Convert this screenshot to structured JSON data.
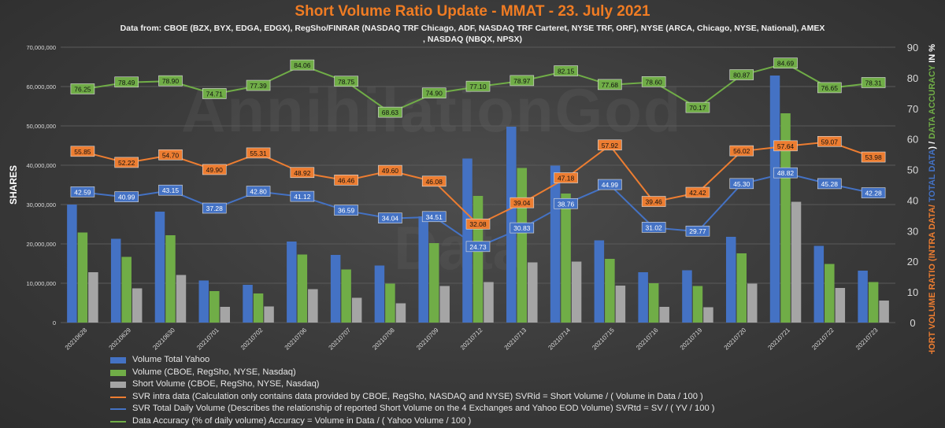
{
  "title": "Short Volume Ratio Update - MMAT - 23. July 2021",
  "subtitle": "Data from: CBOE (BZX, BYX, EDGA, EDGX), RegSho/FINRAR (NASDAQ TRF Chicago, ADF, NASDAQ TRF Carteret, NYSE TRF, ORF), NYSE (ARCA, Chicago, NYSE, National), AMEX , NASDAQ (NBQX, NPSX)",
  "watermark": "AnnihilationGod",
  "watermark2": "Data",
  "colors": {
    "volume_yahoo": "#4472c4",
    "volume_exchanges": "#70ad47",
    "short_volume": "#a5a5a5",
    "svr_intra": "#ed7d31",
    "svr_total": "#4472c4",
    "accuracy": "#70ad47",
    "title": "#f07c23"
  },
  "legend": [
    {
      "key": "volume_yahoo",
      "kind": "bar",
      "label": "Volume Total Yahoo"
    },
    {
      "key": "volume_exchanges",
      "kind": "bar",
      "label": "Volume (CBOE, RegSho, NYSE, Nasdaq)"
    },
    {
      "key": "short_volume",
      "kind": "bar",
      "label": "Short  Volume (CBOE, RegSho, NYSE, Nasdaq)"
    },
    {
      "key": "svr_intra",
      "kind": "line",
      "label": "SVR intra data (Calculation only contains data provided by CBOE, RegSho, NASDAQ and NYSE) SVRid = Short Volume / ( Volume in Data / 100 )"
    },
    {
      "key": "svr_total",
      "kind": "line",
      "label": "SVR Total Daily Volume (Describes the relationship of reported Short Volume on the 4 Exchanges and Yahoo EOD Volume) SVRtd = SV / ( YV / 100 )"
    },
    {
      "key": "accuracy",
      "kind": "line",
      "label": "Data Accuracy (% of daily volume) Accuracy = Volume in Data / ( Yahoo Volume / 100 )"
    }
  ],
  "chart_data": {
    "type": "bar",
    "categories": [
      "20210628",
      "20210629",
      "20210630",
      "20210701",
      "20210702",
      "20210706",
      "20210707",
      "20210708",
      "20210709",
      "20210712",
      "20210713",
      "20210714",
      "20210715",
      "20210716",
      "20210719",
      "20210720",
      "20210721",
      "20210722",
      "20210723"
    ],
    "ylabel": "SHARES",
    "ylim": [
      0,
      70000000
    ],
    "yticks": [
      "0",
      "10,000,000",
      "20,000,000",
      "30,000,000",
      "40,000,000",
      "50,000,000",
      "60,000,000",
      "70,000,000"
    ],
    "y2label_parts": [
      {
        "text": "SHORT VOLUME RATIO (INTRA DATA/ ",
        "key": "svr_intra"
      },
      {
        "text": "TOTAL DATA",
        "key": "svr_total"
      },
      {
        "text": ") / ",
        "key": "plain"
      },
      {
        "text": "DATA ACCURACY",
        "key": "accuracy"
      },
      {
        "text": " IN %",
        "key": "plain"
      }
    ],
    "y2lim": [
      0,
      90
    ],
    "y2ticks": [
      "0",
      "10",
      "20",
      "30",
      "40",
      "50",
      "60",
      "70",
      "80",
      "90"
    ],
    "grid": true,
    "legend_position": "bottom-left",
    "bar_series": [
      {
        "key": "volume_yahoo",
        "values": [
          30000000,
          21300000,
          28200000,
          10700000,
          9600000,
          20600000,
          17200000,
          14500000,
          27000000,
          41700000,
          49800000,
          39900000,
          20900000,
          12800000,
          13300000,
          21800000,
          62800000,
          19500000,
          13200000
        ]
      },
      {
        "key": "volume_exchanges",
        "values": [
          22900000,
          16700000,
          22200000,
          8000000,
          7400000,
          17300000,
          13500000,
          9900000,
          20200000,
          32200000,
          39300000,
          32800000,
          16200000,
          10000000,
          9300000,
          17600000,
          53200000,
          14900000,
          10300000
        ]
      },
      {
        "key": "short_volume",
        "values": [
          12800000,
          8700000,
          12100000,
          4000000,
          4100000,
          8500000,
          6300000,
          4900000,
          9300000,
          10300000,
          15300000,
          15500000,
          9400000,
          4000000,
          3900000,
          9900000,
          30700000,
          8800000,
          5600000
        ]
      }
    ],
    "line_series": [
      {
        "key": "accuracy",
        "values": [
          76.25,
          78.49,
          78.9,
          74.71,
          77.39,
          84.06,
          78.75,
          68.63,
          74.9,
          77.1,
          78.97,
          82.15,
          77.68,
          78.6,
          70.17,
          80.87,
          84.69,
          76.65,
          78.31
        ],
        "labels": [
          "76.25",
          "78.49",
          "78.90",
          "74.71",
          "77.39",
          "84.06",
          "78.75",
          "68.63",
          "74.90",
          "77.10",
          "78.97",
          "82.15",
          "77.68",
          "78.60",
          "70.17",
          "80.87",
          "84.69",
          "76.65",
          "78.31"
        ]
      },
      {
        "key": "svr_intra",
        "values": [
          55.85,
          52.22,
          54.7,
          49.9,
          55.31,
          48.92,
          46.46,
          49.6,
          46.08,
          32.08,
          39.04,
          47.18,
          57.92,
          39.46,
          42.42,
          56.02,
          57.64,
          59.07,
          53.98
        ],
        "labels": [
          "55.85",
          "52.22",
          "54.70",
          "49.90",
          "55.31",
          "48.92",
          "46.46",
          "49.60",
          "46.08",
          "32.08",
          "39.04",
          "47.18",
          "57.92",
          "39.46",
          "42.42",
          "56.02",
          "57.64",
          "59.07",
          "53.98"
        ]
      },
      {
        "key": "svr_total",
        "values": [
          42.59,
          40.99,
          43.15,
          37.28,
          42.8,
          41.12,
          36.59,
          34.04,
          34.51,
          24.73,
          30.83,
          38.76,
          44.99,
          31.02,
          29.77,
          45.3,
          48.82,
          45.28,
          42.28
        ],
        "labels": [
          "42.59",
          "40.99",
          "43.15",
          "37.28",
          "42.80",
          "41.12",
          "36.59",
          "34.04",
          "34.51",
          "24.73",
          "30.83",
          "38.76",
          "44.99",
          "31.02",
          "29.77",
          "45.30",
          "48.82",
          "45.28",
          "42.28"
        ]
      }
    ]
  }
}
